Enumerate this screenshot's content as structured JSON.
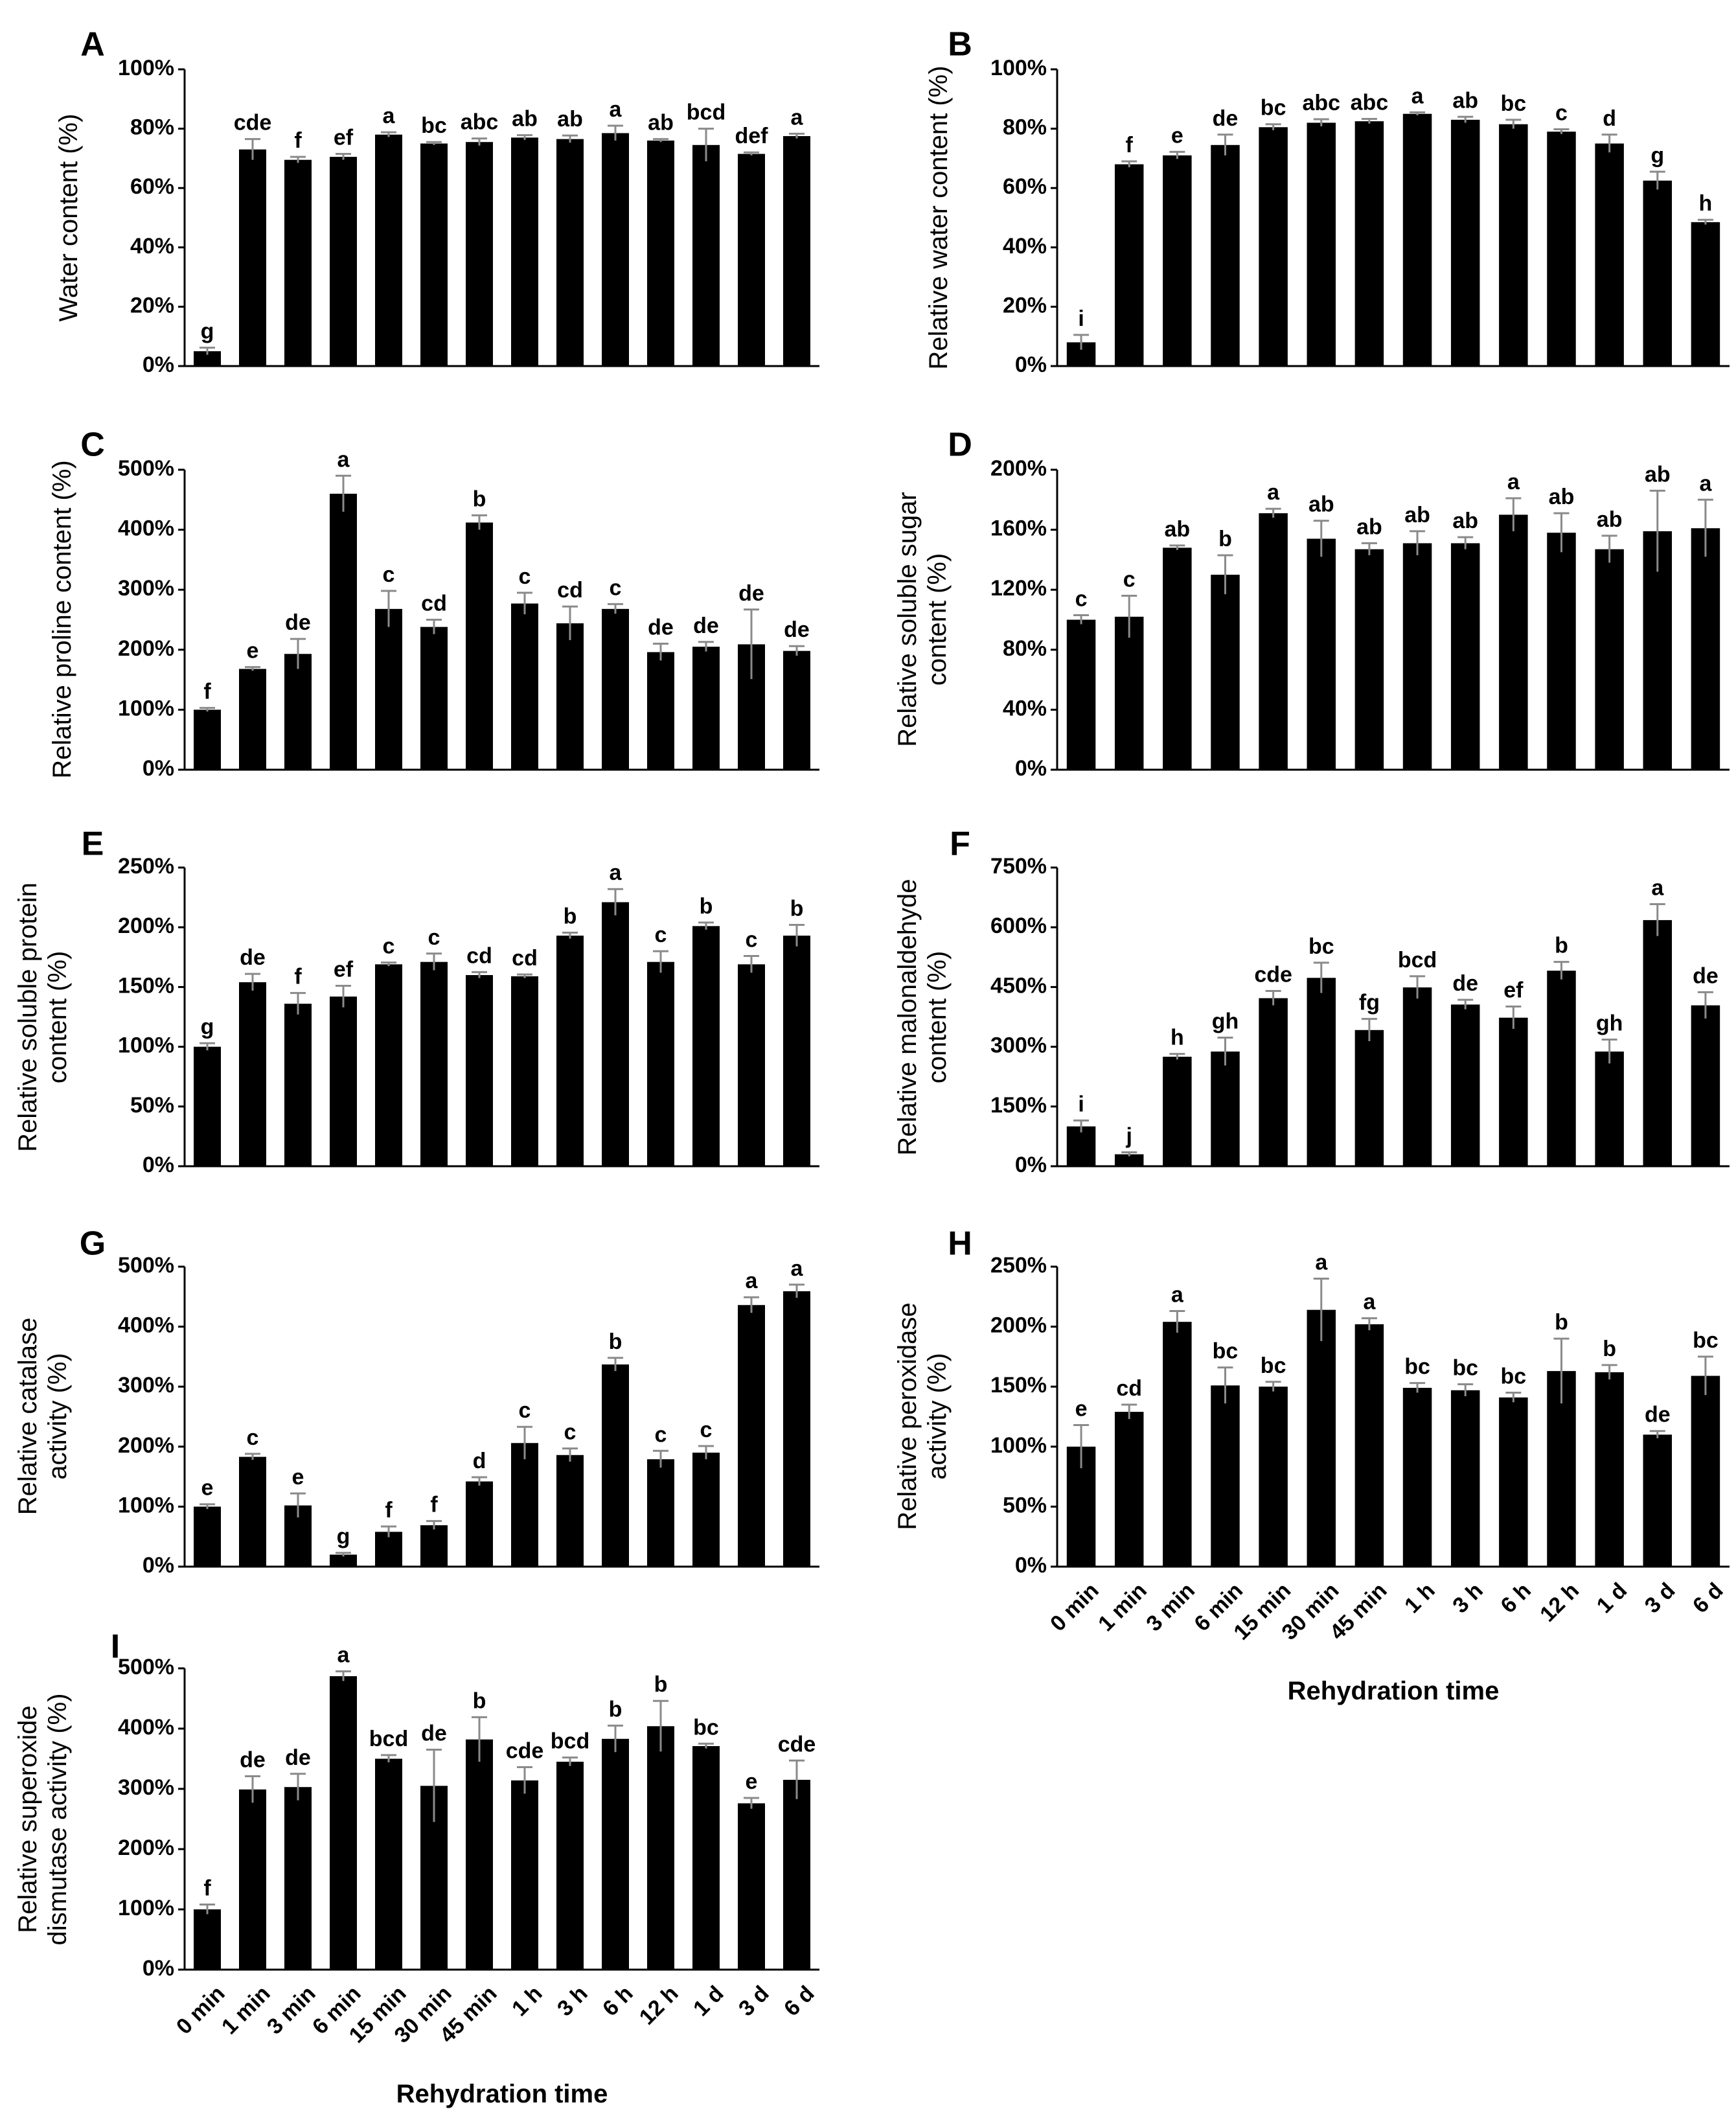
{
  "chart_data": [
    {
      "panel": "A",
      "type": "bar",
      "ylabel": "Water content (%)",
      "ylim": [
        0,
        100
      ],
      "yticks": [
        "0%",
        "20%",
        "40%",
        "60%",
        "80%",
        "100%"
      ],
      "categories": [
        "0 min",
        "1 min",
        "3 min",
        "6 min",
        "15 min",
        "30 min",
        "45 min",
        "1 h",
        "3 h",
        "6 h",
        "12 h",
        "1 d",
        "3 d",
        "6 d"
      ],
      "values": [
        5,
        73,
        69.5,
        70.5,
        78,
        75,
        75.5,
        77,
        76.5,
        78.5,
        76,
        74.5,
        71.5,
        77.5
      ],
      "errors": [
        1.2,
        3.5,
        1.0,
        1.0,
        0.8,
        0.5,
        1.2,
        0.8,
        1.2,
        2.5,
        0.5,
        5.5,
        0.5,
        0.8
      ],
      "letters": [
        "g",
        "cde",
        "f",
        "ef",
        "a",
        "bc",
        "abc",
        "ab",
        "ab",
        "a",
        "ab",
        "bcd",
        "def",
        "a"
      ]
    },
    {
      "panel": "B",
      "type": "bar",
      "ylabel": "Relative water content (%)",
      "ylim": [
        0,
        100
      ],
      "yticks": [
        "0%",
        "20%",
        "40%",
        "60%",
        "80%",
        "100%"
      ],
      "categories": [
        "0 min",
        "1 min",
        "3 min",
        "6 min",
        "15 min",
        "30 min",
        "45 min",
        "1 h",
        "3 h",
        "6 h",
        "12 h",
        "1 d",
        "3 d",
        "6 d"
      ],
      "values": [
        8,
        68,
        71,
        74.5,
        80.5,
        82,
        82.5,
        85,
        83,
        81.5,
        79,
        75,
        62.5,
        48.5
      ],
      "errors": [
        2.5,
        1.0,
        1.2,
        3.5,
        1.0,
        1.2,
        0.8,
        0.5,
        1.0,
        1.5,
        0.8,
        3.0,
        3.0,
        0.8
      ],
      "letters": [
        "i",
        "f",
        "e",
        "de",
        "bc",
        "abc",
        "abc",
        "a",
        "ab",
        "bc",
        "c",
        "d",
        "g",
        "h"
      ]
    },
    {
      "panel": "C",
      "type": "bar",
      "ylabel": "Relative proline content (%)",
      "ylim": [
        0,
        500
      ],
      "yticks": [
        "0%",
        "100%",
        "200%",
        "300%",
        "400%",
        "500%"
      ],
      "categories": [
        "0 min",
        "1 min",
        "3 min",
        "6 min",
        "15 min",
        "30 min",
        "45 min",
        "1 h",
        "3 h",
        "6 h",
        "12 h",
        "1 d",
        "3 d",
        "6 d"
      ],
      "values": [
        100,
        168,
        193,
        460,
        268,
        238,
        412,
        277,
        244,
        268,
        196,
        205,
        209,
        198
      ],
      "errors": [
        3,
        3,
        25,
        30,
        30,
        12,
        12,
        18,
        28,
        8,
        14,
        8,
        58,
        8
      ],
      "letters": [
        "f",
        "e",
        "de",
        "a",
        "c",
        "cd",
        "b",
        "c",
        "cd",
        "c",
        "de",
        "de",
        "de",
        "de"
      ]
    },
    {
      "panel": "D",
      "type": "bar",
      "ylabel": "Relative soluble sugar content (%)",
      "ylim": [
        0,
        200
      ],
      "yticks": [
        "0%",
        "40%",
        "80%",
        "120%",
        "160%",
        "200%"
      ],
      "categories": [
        "0 min",
        "1 min",
        "3 min",
        "6 min",
        "15 min",
        "30 min",
        "45 min",
        "1 h",
        "3 h",
        "6 h",
        "12 h",
        "1 d",
        "3 d",
        "6 d"
      ],
      "values": [
        100,
        102,
        148,
        130,
        171,
        154,
        147,
        151,
        151,
        170,
        158,
        147,
        159,
        161
      ],
      "errors": [
        3,
        14,
        1.5,
        13,
        3,
        12,
        4,
        8,
        4,
        11,
        13,
        9,
        27,
        19
      ],
      "letters": [
        "c",
        "c",
        "ab",
        "b",
        "a",
        "ab",
        "ab",
        "ab",
        "ab",
        "a",
        "ab",
        "ab",
        "ab",
        "a"
      ]
    },
    {
      "panel": "E",
      "type": "bar",
      "ylabel": "Relative soluble protein content  (%)",
      "ylim": [
        0,
        250
      ],
      "yticks": [
        "0%",
        "50%",
        "100%",
        "150%",
        "200%",
        "250%"
      ],
      "categories": [
        "0 min",
        "1 min",
        "3 min",
        "6 min",
        "15 min",
        "30 min",
        "45 min",
        "1 h",
        "3 h",
        "6 h",
        "12 h",
        "1 d",
        "3 d",
        "6 d"
      ],
      "values": [
        100,
        154,
        136,
        142,
        169,
        171,
        160,
        159,
        193,
        221,
        171,
        201,
        169,
        193
      ],
      "errors": [
        3,
        7,
        9,
        9,
        1.5,
        7,
        2.5,
        1.5,
        2.5,
        11,
        9,
        3,
        7,
        9
      ],
      "letters": [
        "g",
        "de",
        "f",
        "ef",
        "c",
        "c",
        "cd",
        "cd",
        "b",
        "a",
        "c",
        "b",
        "c",
        "b"
      ]
    },
    {
      "panel": "F",
      "type": "bar",
      "ylabel": "Relative malonaldehyde content (%)",
      "ylim": [
        0,
        750
      ],
      "yticks": [
        "0%",
        "150%",
        "300%",
        "450%",
        "600%",
        "750%"
      ],
      "categories": [
        "0 min",
        "1 min",
        "3 min",
        "6 min",
        "15 min",
        "30 min",
        "45 min",
        "1 h",
        "3 h",
        "6 h",
        "12 h",
        "1 d",
        "3 d",
        "6 d"
      ],
      "values": [
        100,
        30,
        275,
        288,
        422,
        473,
        342,
        449,
        406,
        373,
        491,
        288,
        618,
        404
      ],
      "errors": [
        15,
        5,
        7,
        35,
        18,
        38,
        28,
        28,
        12,
        28,
        22,
        30,
        40,
        33
      ],
      "letters": [
        "i",
        "j",
        "h",
        "gh",
        "cde",
        "bc",
        "fg",
        "bcd",
        "de",
        "ef",
        "b",
        "gh",
        "a",
        "de"
      ]
    },
    {
      "panel": "G",
      "type": "bar",
      "ylabel": "Relative catalase activity  (%)",
      "ylim": [
        0,
        500
      ],
      "yticks": [
        "0%",
        "100%",
        "200%",
        "300%",
        "400%",
        "500%"
      ],
      "categories": [
        "0 min",
        "1 min",
        "3 min",
        "6 min",
        "15 min",
        "30 min",
        "45 min",
        "1 h",
        "3 h",
        "6 h",
        "12 h",
        "1 d",
        "3 d",
        "6 d"
      ],
      "values": [
        100,
        183,
        102,
        20,
        58,
        69,
        142,
        206,
        186,
        337,
        179,
        190,
        436,
        459
      ],
      "errors": [
        4,
        5,
        20,
        3,
        9,
        7,
        7,
        27,
        11,
        11,
        14,
        11,
        13,
        11
      ],
      "letters": [
        "e",
        "c",
        "e",
        "g",
        "f",
        "f",
        "d",
        "c",
        "c",
        "b",
        "c",
        "c",
        "a",
        "a"
      ]
    },
    {
      "panel": "H",
      "type": "bar",
      "ylabel": "Relative peroxidase activity (%)",
      "ylim": [
        0,
        250
      ],
      "yticks": [
        "0%",
        "50%",
        "100%",
        "150%",
        "200%",
        "250%"
      ],
      "categories": [
        "0 min",
        "1 min",
        "3 min",
        "6 min",
        "15 min",
        "30 min",
        "45 min",
        "1 h",
        "3 h",
        "6 h",
        "12 h",
        "1 d",
        "3 d",
        "6 d"
      ],
      "values": [
        100,
        129,
        204,
        151,
        150,
        214,
        202,
        149,
        147,
        141,
        163,
        162,
        110,
        159
      ],
      "errors": [
        18,
        6,
        9,
        15,
        4,
        26,
        5,
        4,
        5,
        4,
        27,
        6,
        3,
        16
      ],
      "letters": [
        "e",
        "cd",
        "a",
        "bc",
        "bc",
        "a",
        "a",
        "bc",
        "bc",
        "bc",
        "b",
        "b",
        "de",
        "bc"
      ],
      "xlabel": "Rehydration time"
    },
    {
      "panel": "I",
      "type": "bar",
      "ylabel": "Relative superoxide dismutase activity (%)",
      "ylim": [
        0,
        500
      ],
      "yticks": [
        "0%",
        "100%",
        "200%",
        "300%",
        "400%",
        "500%"
      ],
      "categories": [
        "0 min",
        "1 min",
        "3 min",
        "6 min",
        "15 min",
        "30 min",
        "45 min",
        "1 h",
        "3 h",
        "6 h",
        "12 h",
        "1 d",
        "3 d",
        "6 d"
      ],
      "values": [
        100,
        299,
        303,
        487,
        350,
        305,
        382,
        314,
        345,
        383,
        404,
        371,
        276,
        315
      ],
      "errors": [
        8,
        22,
        22,
        8,
        6,
        60,
        37,
        22,
        7,
        22,
        42,
        4,
        9,
        32
      ],
      "letters": [
        "f",
        "de",
        "de",
        "a",
        "bcd",
        "de",
        "b",
        "cde",
        "bcd",
        "b",
        "b",
        "bc",
        "e",
        "cde"
      ],
      "xlabel": "Rehydration time"
    }
  ]
}
